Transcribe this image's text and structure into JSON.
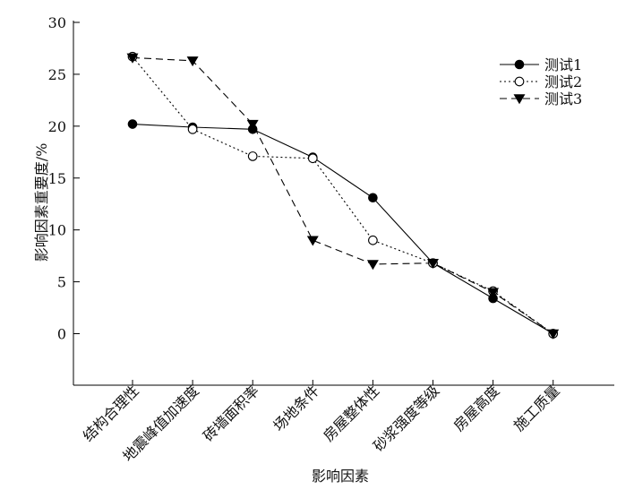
{
  "chart_data": {
    "type": "line",
    "title": "",
    "xlabel": "影响因素",
    "ylabel": "影响因素重要度/%",
    "ylim": [
      -5,
      30
    ],
    "yticks": [
      0,
      5,
      10,
      15,
      20,
      25,
      30
    ],
    "grid": false,
    "legend_position": "top-right",
    "categories": [
      "结构合理性",
      "地震峰值加速度",
      "砖墙面积率",
      "场地条件",
      "房屋整体性",
      "砂浆强度等级",
      "房屋高度",
      "施工质量"
    ],
    "series": [
      {
        "name": "测试1",
        "marker": "filled-circle",
        "line_style": "solid",
        "color": "#000000",
        "values": [
          20.2,
          19.9,
          19.7,
          17.0,
          13.1,
          6.8,
          3.4,
          0.0
        ]
      },
      {
        "name": "测试2",
        "marker": "open-circle",
        "line_style": "dotted",
        "color": "#000000",
        "values": [
          26.7,
          19.7,
          17.1,
          16.9,
          9.0,
          6.8,
          4.1,
          0.0
        ]
      },
      {
        "name": "测试3",
        "marker": "filled-triangle-down",
        "line_style": "dashed",
        "color": "#000000",
        "values": [
          26.6,
          26.3,
          20.2,
          9.0,
          6.7,
          6.8,
          4.0,
          0.0
        ]
      }
    ]
  }
}
